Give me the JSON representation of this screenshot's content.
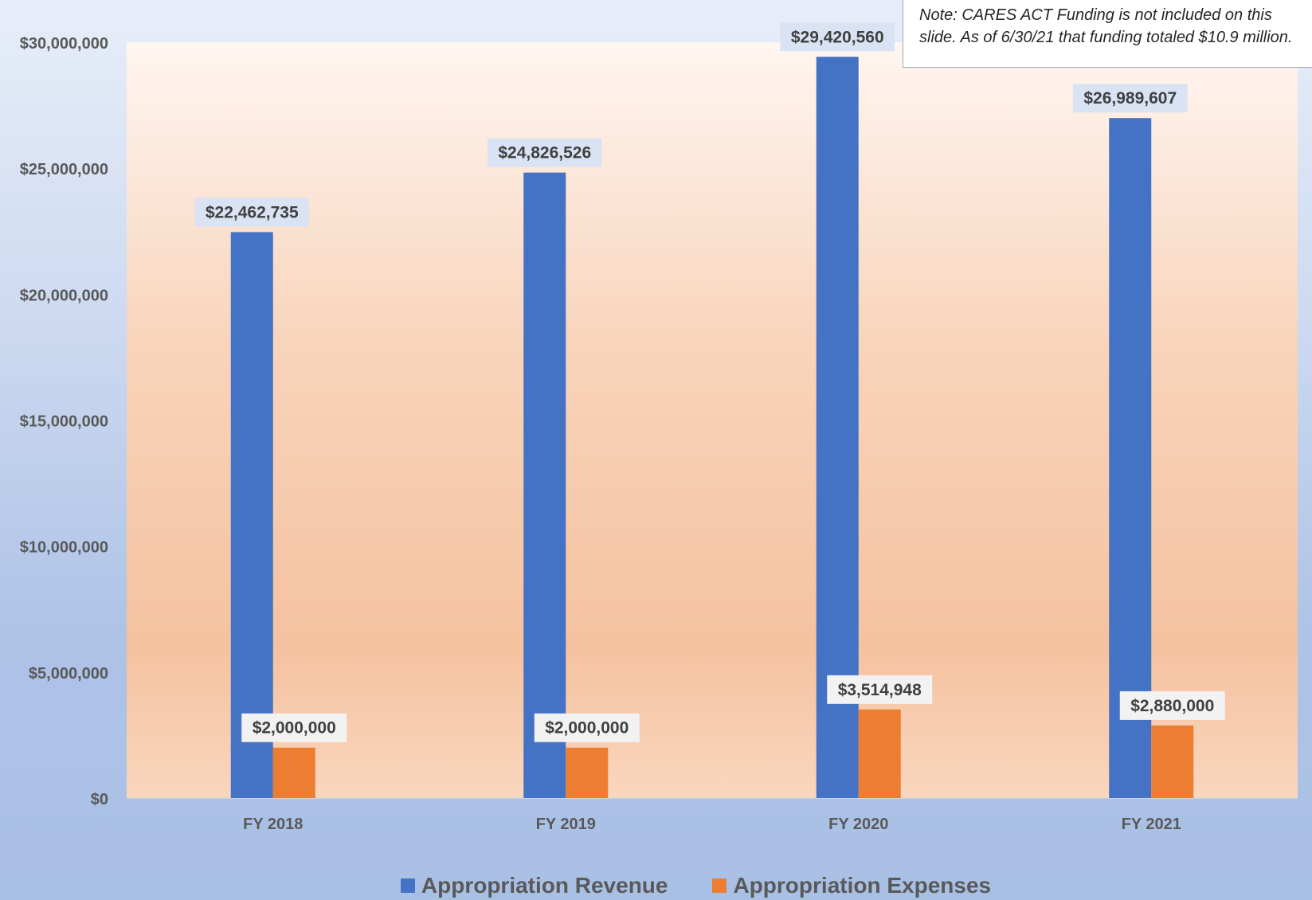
{
  "chart_data": {
    "type": "bar",
    "categories": [
      "FY 2018",
      "FY 2019",
      "FY 2020",
      "FY 2021"
    ],
    "series": [
      {
        "name": "Appropriation Revenue",
        "color": "#4472c4",
        "values": [
          22462735,
          24826526,
          29420560,
          26989607
        ],
        "labels": [
          "$22,462,735",
          "$24,826,526",
          "$29,420,560",
          "$26,989,607"
        ]
      },
      {
        "name": "Appropriation Expenses",
        "color": "#ed7d31",
        "values": [
          2000000,
          2000000,
          3514948,
          2880000
        ],
        "labels": [
          "$2,000,000",
          "$2,000,000",
          "$3,514,948",
          "$2,880,000"
        ]
      }
    ],
    "ylim": [
      0,
      30000000
    ],
    "yticks": [
      0,
      5000000,
      10000000,
      15000000,
      20000000,
      25000000,
      30000000
    ],
    "ytick_labels": [
      "$0",
      "$5,000,000",
      "$10,000,000",
      "$15,000,000",
      "$20,000,000",
      "$25,000,000",
      "$30,000,000"
    ],
    "xlabel": "",
    "ylabel": "",
    "grid": false,
    "legend_position": "bottom",
    "annotation": "Note:  CARES ACT Funding is not included on this slide. As of 6/30/21 that funding totaled $10.9 million."
  }
}
